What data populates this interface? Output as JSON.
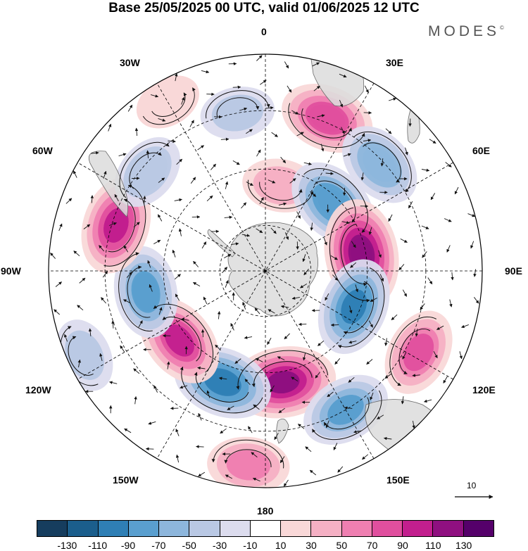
{
  "title": "Base 25/05/2025 00 UTC, valid 01/06/2025 12 UTC",
  "logo": {
    "text": "MODES",
    "mark": "©"
  },
  "map": {
    "projection": "south-polar-stereographic",
    "longitude_labels": [
      "0",
      "30E",
      "60E",
      "90E",
      "120E",
      "150E",
      "180",
      "150W",
      "120W",
      "90W",
      "60W",
      "30W"
    ],
    "colors": {
      "land": "#dcdcdc",
      "coast": "#6a6a6a",
      "grid": "#000000",
      "stream": "#111111"
    },
    "anomalies": [
      {
        "name": "south-atlantic-high",
        "lon": 22,
        "r": 0.76,
        "value": 90
      },
      {
        "name": "south-atlantic-low",
        "lon": -10,
        "r": 0.74,
        "value": -40
      },
      {
        "name": "indian-ocean-low",
        "lon": 47,
        "r": 0.72,
        "value": -75
      },
      {
        "name": "weddell-high",
        "lon": 10,
        "r": 0.4,
        "value": 45
      },
      {
        "name": "east-antarctic-low",
        "lon": 45,
        "r": 0.44,
        "value": -95
      },
      {
        "name": "kerguelen-high",
        "lon": 80,
        "r": 0.45,
        "value": 130
      },
      {
        "name": "australian-low",
        "lon": 112,
        "r": 0.44,
        "value": -100
      },
      {
        "name": "tasman-high",
        "lon": 118,
        "r": 0.8,
        "value": 75
      },
      {
        "name": "ross-sea-high",
        "lon": 171,
        "r": 0.52,
        "value": 120
      },
      {
        "name": "pacific-low",
        "lon": -159,
        "r": 0.55,
        "value": -105
      },
      {
        "name": "bellingshausen-high",
        "lon": -129,
        "r": 0.51,
        "value": 95
      },
      {
        "name": "southeast-pacific-low",
        "lon": -100,
        "r": 0.56,
        "value": -85
      },
      {
        "name": "drake-high",
        "lon": -73,
        "r": 0.72,
        "value": 100
      },
      {
        "name": "patagonia-low",
        "lon": -50,
        "r": 0.71,
        "value": -50
      },
      {
        "name": "new-zealand-low",
        "lon": 150,
        "r": 0.74,
        "value": -80
      },
      {
        "name": "south-pacific-high",
        "lon": -175,
        "r": 0.9,
        "value": 60
      },
      {
        "name": "west-pacific-low",
        "lon": -115,
        "r": 0.92,
        "value": -40
      },
      {
        "name": "central-atlantic-high",
        "lon": -30,
        "r": 0.9,
        "value": 20
      }
    ]
  },
  "vector_reference": {
    "label": "10"
  },
  "colorbar": {
    "colors": [
      "#163d5e",
      "#1b5e8c",
      "#2f7fb5",
      "#5a9fcf",
      "#8db6dc",
      "#b9c8e4",
      "#dcdcee",
      "#ffffff",
      "#f9d8d8",
      "#f5b0c4",
      "#ef7fb1",
      "#e04f9e",
      "#c21f8e",
      "#8f1080",
      "#55006a"
    ],
    "tick_labels": [
      "-130",
      "-110",
      "-90",
      "-70",
      "-50",
      "-30",
      "-10",
      "10",
      "30",
      "50",
      "70",
      "90",
      "110",
      "130"
    ]
  }
}
